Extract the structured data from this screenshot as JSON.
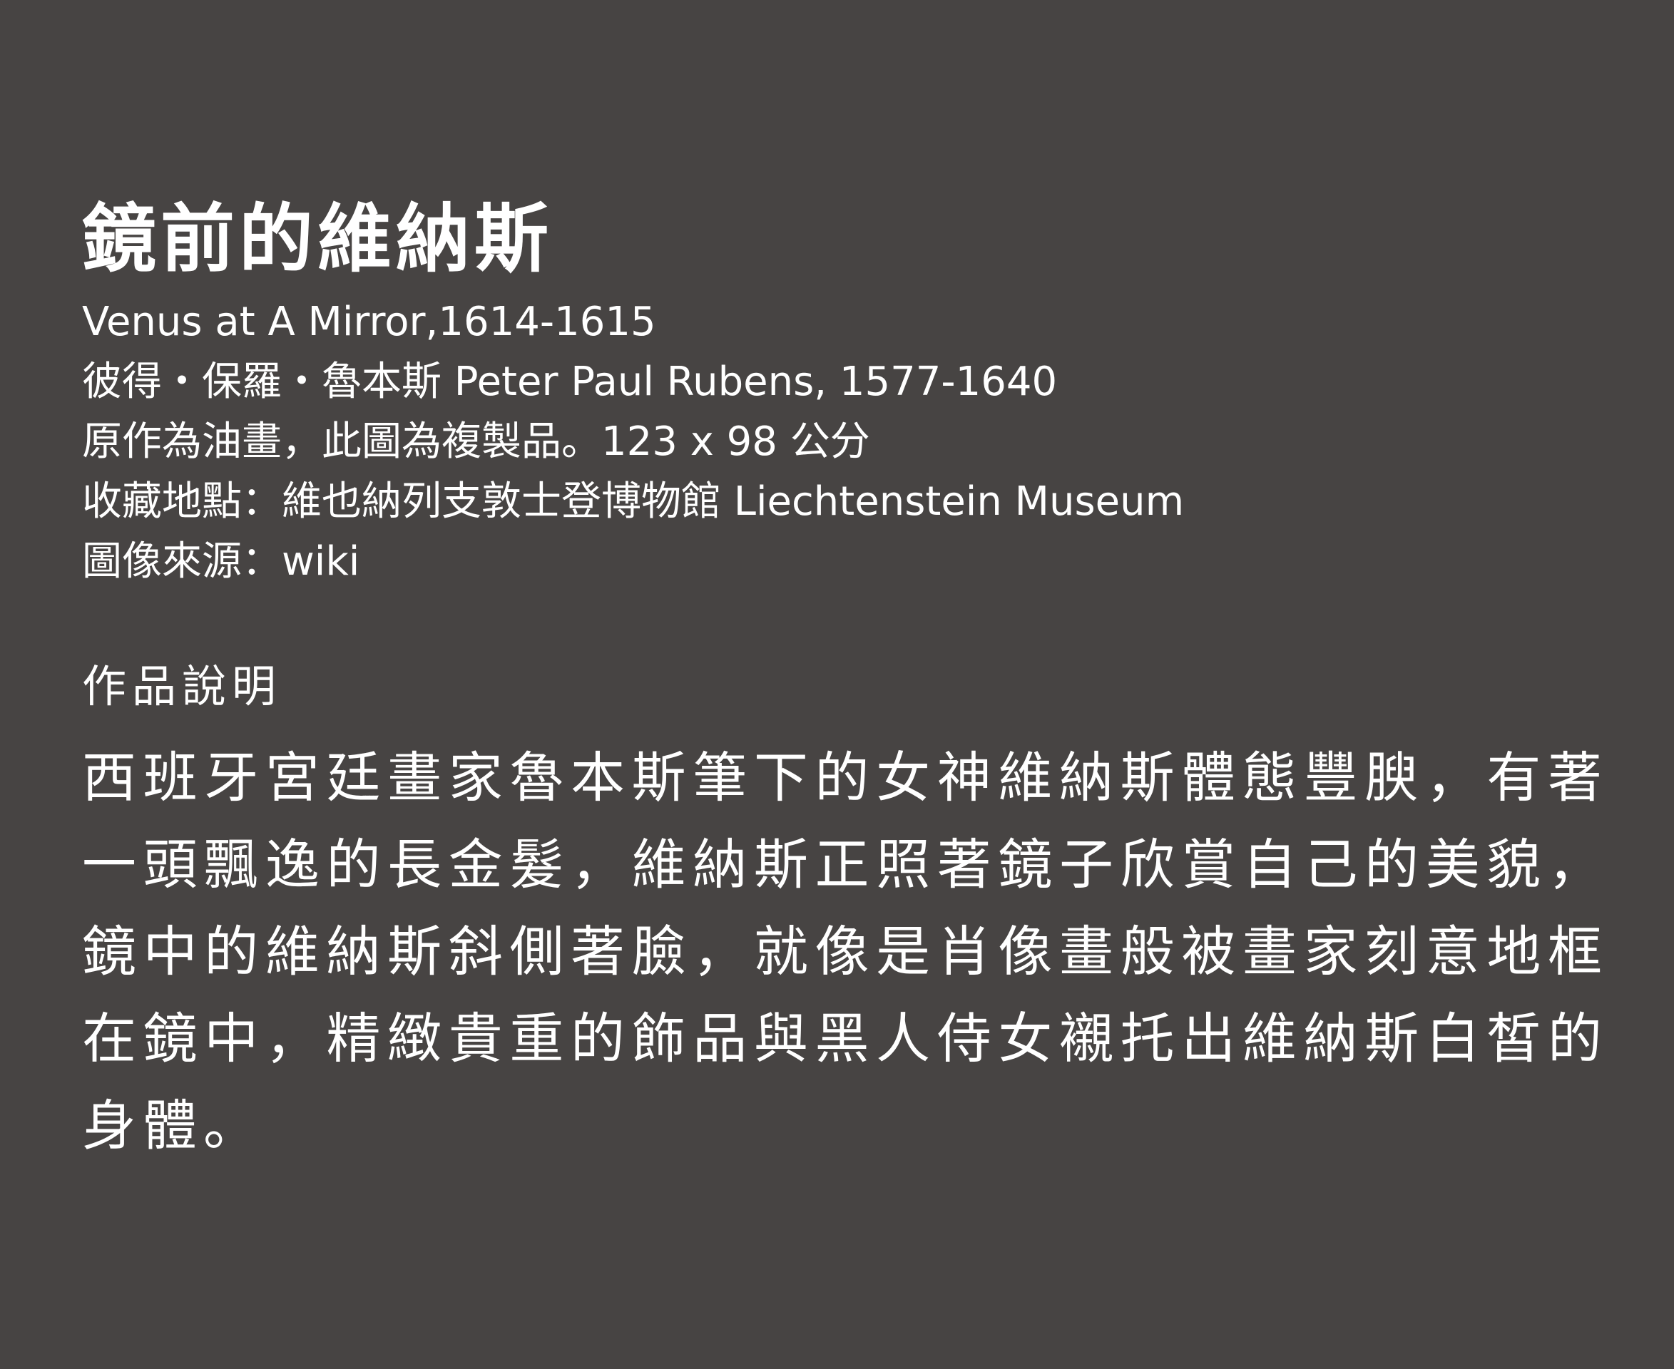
{
  "artwork": {
    "title": "鏡前的維納斯",
    "meta_lines": [
      "Venus at A Mirror,1614-1615",
      "彼得・保羅・魯本斯 Peter Paul Rubens, 1577-1640",
      "原作為油畫，此圖為複製品。123 x 98 公分",
      "收藏地點：維也納列支敦士登博物館 Liechtenstein Museum",
      "圖像來源：wiki"
    ]
  },
  "description_section": {
    "heading": "作品說明",
    "body": "西班牙宮廷畫家魯本斯筆下的女神維納斯體態豐腴，有著一頭飄逸的長金髮，維納斯正照著鏡子欣賞自己的美貌，鏡中的維納斯斜側著臉，就像是肖像畫般被畫家刻意地框在鏡中，精緻貴重的飾品與黑人侍女襯托出維納斯白皙的身體。"
  },
  "colors": {
    "background": "#474443",
    "text": "#ffffff"
  }
}
